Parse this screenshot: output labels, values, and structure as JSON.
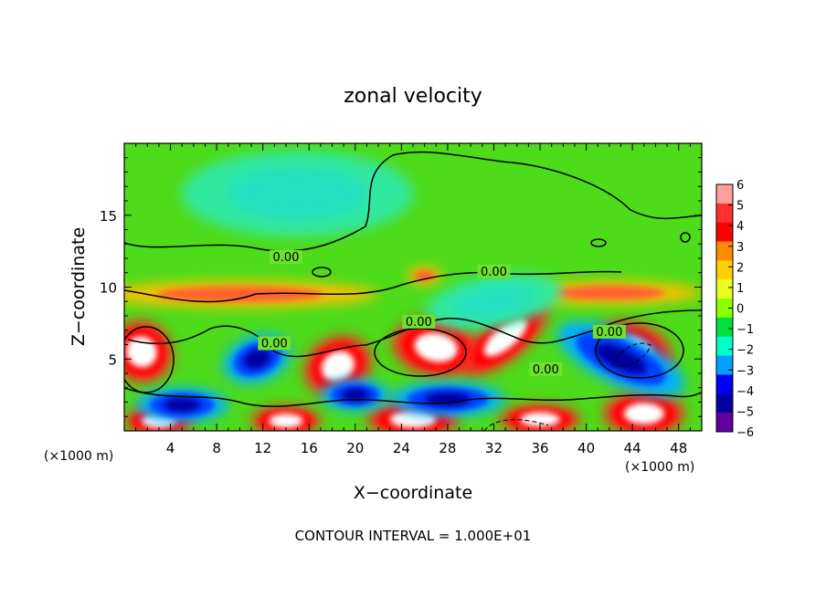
{
  "chart_data": {
    "type": "heatmap",
    "title": "zonal velocity",
    "xlabel": "X−coordinate",
    "ylabel": "Z−coordinate",
    "x_unit_left": "(×1000 m)",
    "x_unit_right": "(×1000 m)",
    "footer": "CONTOUR INTERVAL = 1.000E+01",
    "xlim": [
      0,
      50
    ],
    "ylim": [
      0,
      20
    ],
    "xticks": [
      4,
      8,
      12,
      16,
      20,
      24,
      28,
      32,
      36,
      40,
      44,
      48
    ],
    "yticks": [
      5,
      10,
      15
    ],
    "contour_labels": [
      {
        "x": 14.0,
        "y": 12.0,
        "text": "0.00"
      },
      {
        "x": 32.0,
        "y": 11.0,
        "text": "0.00"
      },
      {
        "x": 25.5,
        "y": 7.5,
        "text": "0.00"
      },
      {
        "x": 13.0,
        "y": 6.0,
        "text": "0.00"
      },
      {
        "x": 42.0,
        "y": 6.8,
        "text": "0.00"
      },
      {
        "x": 36.5,
        "y": 4.2,
        "text": "0.00"
      }
    ],
    "colorbar": {
      "range": [
        -6,
        6
      ],
      "tick_labels": [
        "6",
        "5",
        "4",
        "3",
        "2",
        "1",
        "0",
        "−1",
        "−2",
        "−3",
        "−4",
        "−5",
        "−6"
      ],
      "colors": [
        "#ff9f9f",
        "#ff3030",
        "#ff0000",
        "#ff8c00",
        "#ffd000",
        "#e8ff20",
        "#8cff00",
        "#00e040",
        "#00ffcc",
        "#00a0ff",
        "#0000ff",
        "#0000a0",
        "#6000a0"
      ]
    },
    "features": [
      {
        "kind": "positive",
        "x": 1.5,
        "y": 5.5,
        "rx": 2.6,
        "ry": 2.2,
        "rot": 40
      },
      {
        "kind": "positive",
        "x": 18.5,
        "y": 4.5,
        "rx": 3.0,
        "ry": 2.0,
        "rot": 30
      },
      {
        "kind": "positive",
        "x": 27.0,
        "y": 5.8,
        "rx": 3.8,
        "ry": 2.0,
        "rot": -10
      },
      {
        "kind": "positive",
        "x": 33.0,
        "y": 6.5,
        "rx": 4.6,
        "ry": 1.5,
        "rot": 40
      },
      {
        "kind": "positive",
        "x": 44.0,
        "y": 5.5,
        "rx": 3.6,
        "ry": 2.0,
        "rot": -20
      },
      {
        "kind": "positive",
        "x": 14.0,
        "y": 0.7,
        "rx": 3.0,
        "ry": 1.0,
        "rot": 0
      },
      {
        "kind": "positive",
        "x": 3.0,
        "y": 0.7,
        "rx": 3.0,
        "ry": 1.0,
        "rot": 0
      },
      {
        "kind": "positive",
        "x": 25.0,
        "y": 0.8,
        "rx": 4.0,
        "ry": 1.2,
        "rot": 0
      },
      {
        "kind": "positive",
        "x": 36.0,
        "y": 0.8,
        "rx": 3.5,
        "ry": 1.0,
        "rot": 0
      },
      {
        "kind": "positive",
        "x": 45.0,
        "y": 1.2,
        "rx": 3.5,
        "ry": 1.5,
        "rot": 0
      },
      {
        "kind": "negative",
        "x": 11.5,
        "y": 5.0,
        "rx": 3.0,
        "ry": 1.6,
        "rot": 20
      },
      {
        "kind": "negative",
        "x": 43.0,
        "y": 5.0,
        "rx": 6.0,
        "ry": 1.8,
        "rot": -25
      },
      {
        "kind": "negative",
        "x": 5.0,
        "y": 1.8,
        "rx": 4.0,
        "ry": 1.2,
        "rot": 0
      },
      {
        "kind": "negative",
        "x": 28.0,
        "y": 2.2,
        "rx": 5.0,
        "ry": 1.2,
        "rot": 0
      },
      {
        "kind": "negative",
        "x": 20.0,
        "y": 2.5,
        "rx": 3.0,
        "ry": 1.1,
        "rot": 0
      },
      {
        "kind": "weak_pos",
        "x": 26.0,
        "y": 10.8,
        "rx": 1.5,
        "ry": 0.6,
        "rot": 0
      },
      {
        "kind": "weak_pos",
        "x": 10.0,
        "y": 9.5,
        "rx": 12.0,
        "ry": 0.9,
        "rot": 0
      },
      {
        "kind": "weak_pos",
        "x": 42.0,
        "y": 9.6,
        "rx": 8.0,
        "ry": 0.8,
        "rot": 0
      },
      {
        "kind": "weak_neg",
        "x": 15.0,
        "y": 16.5,
        "rx": 10.0,
        "ry": 3.0,
        "rot": 0
      },
      {
        "kind": "weak_neg",
        "x": 32.0,
        "y": 9.0,
        "rx": 6.0,
        "ry": 1.8,
        "rot": 10
      }
    ]
  }
}
